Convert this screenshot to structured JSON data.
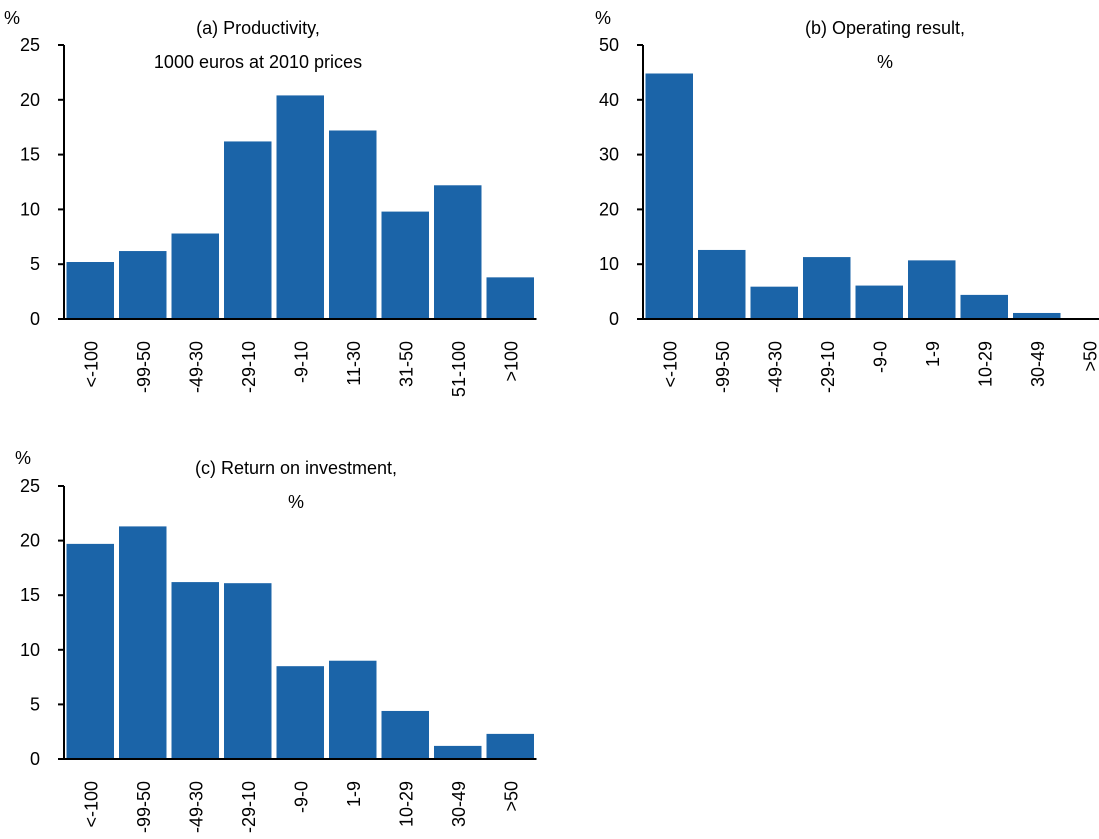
{
  "colors": {
    "bar": "#1b64a8",
    "axis": "#000000",
    "background": "#ffffff"
  },
  "chart_data": [
    {
      "type": "bar",
      "title": "(a) Productivity,",
      "subtitle": "1000 euros at 2010 prices",
      "ylabel": "%",
      "xlabel": "",
      "ylim": [
        0,
        25
      ],
      "yticks": [
        0,
        5,
        10,
        15,
        20,
        25
      ],
      "grid": false,
      "categories": [
        "<-100",
        "-99-50",
        "-49-30",
        "-29-10",
        "-9-10",
        "11-30",
        "31-50",
        "51-100",
        ">100"
      ],
      "values": [
        5.2,
        6.2,
        7.8,
        16.2,
        20.4,
        17.2,
        9.8,
        12.2,
        3.8
      ]
    },
    {
      "type": "bar",
      "title": "(b) Operating result,",
      "subtitle": "%",
      "ylabel": "%",
      "xlabel": "",
      "ylim": [
        0,
        50
      ],
      "yticks": [
        0,
        10,
        20,
        30,
        40,
        50
      ],
      "grid": false,
      "categories": [
        "<-100",
        "-99-50",
        "-49-30",
        "-29-10",
        "-9-0",
        "1-9",
        "10-29",
        "30-49",
        ">50"
      ],
      "values": [
        44.8,
        12.6,
        5.9,
        11.3,
        6.1,
        10.7,
        4.4,
        1.1,
        0
      ]
    },
    {
      "type": "bar",
      "title": "(c) Return on investment,",
      "subtitle": "%",
      "ylabel": "%",
      "xlabel": "",
      "ylim": [
        0,
        25
      ],
      "yticks": [
        0,
        5,
        10,
        15,
        20,
        25
      ],
      "grid": false,
      "categories": [
        "<-100",
        "-99-50",
        "-49-30",
        "-29-10",
        "-9-0",
        "1-9",
        "10-29",
        "30-49",
        ">50"
      ],
      "values": [
        19.7,
        21.3,
        16.2,
        16.1,
        8.5,
        9.0,
        4.4,
        1.2,
        2.3
      ]
    }
  ]
}
